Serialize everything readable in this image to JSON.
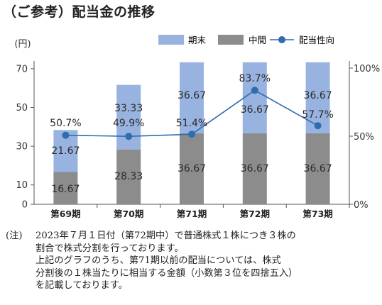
{
  "title": "（ご参考）配当金の推移",
  "chart_data": {
    "type": "bar",
    "stacked": true,
    "unit_label": "(円)",
    "categories": [
      "第69期",
      "第70期",
      "第71期",
      "第72期",
      "第73期"
    ],
    "series": [
      {
        "name": "中間",
        "values": [
          16.67,
          28.33,
          36.67,
          36.67,
          36.67
        ],
        "labels": [
          "16.67",
          "28.33",
          "36.67",
          "36.67",
          "36.67"
        ],
        "color": "#8c8c8c"
      },
      {
        "name": "期末",
        "values": [
          21.67,
          33.33,
          36.67,
          36.67,
          36.67
        ],
        "labels": [
          "21.67",
          "33.33",
          "36.67",
          "36.67",
          "36.67"
        ],
        "color": "#98b3df"
      }
    ],
    "line": {
      "name": "配当性向",
      "values": [
        50.7,
        49.9,
        51.4,
        83.7,
        57.7
      ],
      "labels": [
        "50.7%",
        "49.9%",
        "51.4%",
        "83.7%",
        "57.7%"
      ],
      "color": "#2f6cb0"
    },
    "y_left_ticks": [
      "0",
      "10",
      "30",
      "50",
      "70"
    ],
    "y_right_ticks": [
      "0%",
      "50%",
      "100%"
    ],
    "y_right_range": [
      0,
      100
    ],
    "legend_position": "top-right"
  },
  "note": {
    "mark": "(注)",
    "lines": [
      "2023年７月１日付（第72期中）で普通株式１株につき３株の",
      "割合で株式分割を行っております。",
      "上記のグラフのうち、第71期以前の配当については、株式",
      "分割後の１株当たりに相当する金額（小数第３位を四捨五入）",
      "を記載しております。"
    ]
  }
}
